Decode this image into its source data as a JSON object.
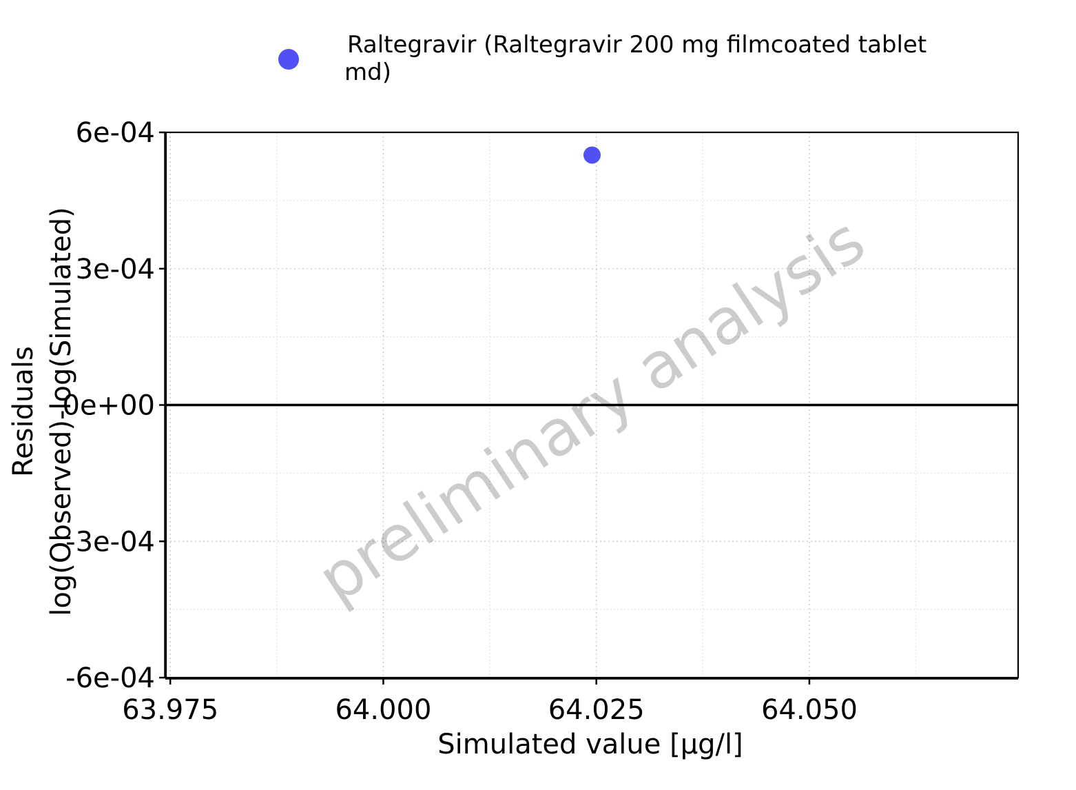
{
  "chart_data": {
    "type": "scatter",
    "series": [
      {
        "name": "Raltegravir (Raltegravir 200 mg filmcoated tablet md)",
        "name_lines": [
          "Raltegravir (Raltegravir 200 mg filmcoated tablet",
          "md)"
        ],
        "color": "#5050f5",
        "points": [
          {
            "x": 64.0245,
            "y": 0.00055
          }
        ]
      }
    ],
    "xlabel": "Simulated value [µg/l]",
    "ylabel_lines": [
      "Residuals",
      "log(Observed)-log(Simulated)"
    ],
    "xlim": [
      63.9745,
      64.0745
    ],
    "ylim": [
      -0.0006,
      0.0006
    ],
    "x_ticks": [
      {
        "value": 63.975,
        "label": "63.975"
      },
      {
        "value": 64.0,
        "label": "64.000"
      },
      {
        "value": 64.025,
        "label": "64.025"
      },
      {
        "value": 64.05,
        "label": "64.050"
      }
    ],
    "y_ticks": [
      {
        "value": 0.0006,
        "label": "6e-04"
      },
      {
        "value": 0.0003,
        "label": "3e-04"
      },
      {
        "value": 0.0,
        "label": "0e+00"
      },
      {
        "value": -0.0003,
        "label": "-3e-04"
      },
      {
        "value": -0.0006,
        "label": "-6e-04"
      }
    ],
    "reference_line_y": 0,
    "grid": true,
    "legend_position": "top",
    "watermark": "preliminary analysis"
  }
}
